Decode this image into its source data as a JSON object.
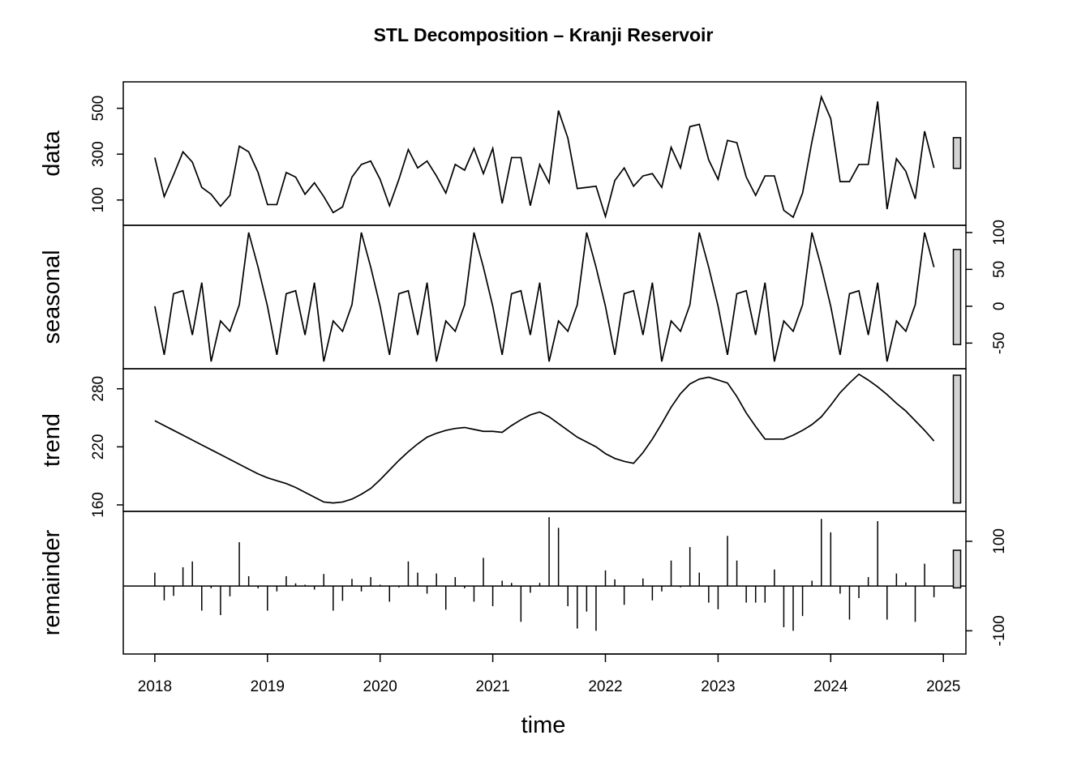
{
  "chart_data": {
    "type": "line",
    "title": "STL Decomposition – Kranji Reservoir",
    "xlabel": "time",
    "xlim": [
      2017.72,
      2025.2
    ],
    "x_ticks": [
      "2018",
      "2019",
      "2020",
      "2021",
      "2022",
      "2023",
      "2024",
      "2025"
    ],
    "x_start": 2018,
    "frequency": 12,
    "panels": [
      {
        "name": "data",
        "label": "data",
        "style": "line",
        "ylim": [
          25,
          580
        ],
        "y_ticks": [
          "100",
          "300",
          "500"
        ],
        "y_axis_side": "left",
        "values": [
          285,
          115,
          210,
          310,
          265,
          155,
          125,
          73,
          120,
          335,
          310,
          220,
          80,
          80,
          220,
          200,
          125,
          175,
          115,
          45,
          70,
          200,
          255,
          270,
          190,
          75,
          190,
          320,
          240,
          270,
          205,
          130,
          255,
          230,
          325,
          215,
          325,
          85,
          285,
          285,
          75,
          255,
          175,
          490,
          370,
          150,
          155,
          160,
          28,
          185,
          240,
          160,
          205,
          215,
          155,
          330,
          240,
          420,
          430,
          275,
          190,
          360,
          350,
          200,
          120,
          205,
          205,
          55,
          25,
          130,
          355,
          550,
          455,
          180,
          180,
          255,
          255,
          530,
          60,
          280,
          225,
          105,
          400,
          240
        ],
        "range_bar": [
          238,
          372
        ]
      },
      {
        "name": "seasonal",
        "label": "seasonal",
        "style": "line",
        "ylim": [
          -76,
          101
        ],
        "y_ticks": [
          "-50",
          "0",
          "50",
          "100"
        ],
        "y_axis_side": "right",
        "values": [
          0,
          -66,
          17,
          21,
          -39,
          32,
          -75,
          -20,
          -34,
          2,
          100,
          53,
          0,
          -66,
          17,
          21,
          -39,
          32,
          -75,
          -20,
          -34,
          2,
          100,
          53,
          0,
          -66,
          17,
          21,
          -39,
          32,
          -75,
          -20,
          -34,
          2,
          100,
          53,
          0,
          -66,
          17,
          21,
          -39,
          32,
          -75,
          -20,
          -34,
          2,
          100,
          53,
          0,
          -66,
          17,
          21,
          -39,
          32,
          -75,
          -20,
          -34,
          2,
          100,
          53,
          0,
          -66,
          17,
          21,
          -39,
          32,
          -75,
          -20,
          -34,
          2,
          100,
          53,
          0,
          -66,
          17,
          21,
          -39,
          32,
          -75,
          -20,
          -34,
          2,
          100,
          53
        ],
        "range_bar": [
          -52,
          77
        ]
      },
      {
        "name": "trend",
        "label": "trend",
        "style": "line",
        "ylim": [
          160,
          294
        ],
        "y_ticks": [
          "160",
          "220",
          "280"
        ],
        "y_axis_side": "left",
        "values": [
          247,
          242,
          237,
          232,
          227,
          222,
          217,
          212,
          207,
          202,
          197,
          192,
          188,
          185,
          182,
          178,
          173,
          168,
          163,
          162,
          163,
          166,
          171,
          177,
          186,
          196,
          206,
          215,
          223,
          230,
          234,
          237,
          239,
          240,
          238,
          236,
          236,
          235,
          242,
          248,
          253,
          256,
          251,
          244,
          237,
          230,
          225,
          220,
          213,
          208,
          205,
          203,
          214,
          228,
          244,
          261,
          275,
          285,
          290,
          292,
          289,
          286,
          272,
          255,
          241,
          228,
          228,
          228,
          232,
          237,
          243,
          251,
          263,
          276,
          286,
          295,
          289,
          282,
          274,
          265,
          257,
          247,
          237,
          226
        ],
        "range_bar": [
          162,
          294
        ]
      },
      {
        "name": "remainder",
        "label": "remainder",
        "style": "bars",
        "ylim": [
          -141,
          156
        ],
        "y_ticks": [
          "-100",
          "100"
        ],
        "y_axis_side": "right",
        "values": [
          30,
          -32,
          -22,
          42,
          55,
          -55,
          -5,
          -65,
          -23,
          98,
          22,
          -5,
          -55,
          -12,
          22,
          6,
          3,
          -8,
          27,
          -55,
          -33,
          16,
          -12,
          20,
          3,
          -35,
          -3,
          55,
          30,
          -17,
          28,
          -53,
          20,
          -5,
          -35,
          63,
          -45,
          12,
          7,
          -80,
          -15,
          7,
          154,
          130,
          -45,
          -95,
          -57,
          -100,
          35,
          15,
          -42,
          0,
          17,
          -32,
          -12,
          57,
          -3,
          87,
          30,
          -37,
          -52,
          112,
          57,
          -37,
          -37,
          -37,
          37,
          -92,
          -100,
          -67,
          12,
          150,
          120,
          -17,
          -75,
          -27,
          20,
          145,
          -75,
          28,
          8,
          -80,
          50,
          -25
        ],
        "range_bar": [
          -4,
          80
        ]
      }
    ]
  }
}
